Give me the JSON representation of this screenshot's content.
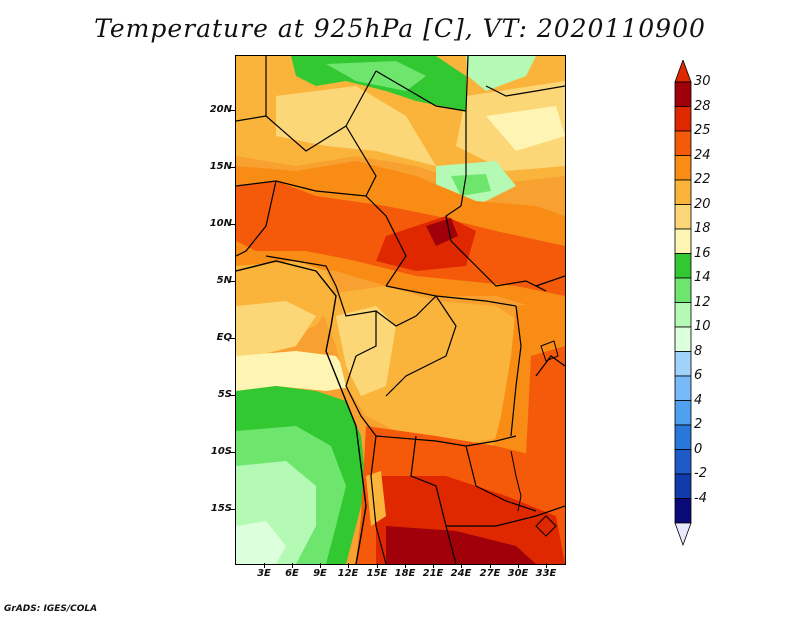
{
  "title": "Temperature at 925hPa [C], VT: 2020110900",
  "footer": "GrADS: IGES/COLA",
  "map": {
    "lat_labels": [
      "20N",
      "15N",
      "10N",
      "5N",
      "EQ",
      "5S",
      "10S",
      "15S"
    ],
    "lon_labels": [
      "3E",
      "6E",
      "9E",
      "12E",
      "15E",
      "18E",
      "21E",
      "24E",
      "27E",
      "30E",
      "33E"
    ]
  },
  "colorbar": {
    "levels": [
      {
        "label": "30",
        "color": "#a0000a"
      },
      {
        "label": "28",
        "color": "#e02800"
      },
      {
        "label": "25",
        "color": "#f55a0a"
      },
      {
        "label": "24",
        "color": "#f88c14"
      },
      {
        "label": "22",
        "color": "#fab43c"
      },
      {
        "label": "20",
        "color": "#fcd778"
      },
      {
        "label": "18",
        "color": "#fef5b4"
      },
      {
        "label": "16",
        "color": "#32c832"
      },
      {
        "label": "14",
        "color": "#6ee66e"
      },
      {
        "label": "12",
        "color": "#b4fab4"
      },
      {
        "label": "10",
        "color": "#dcffdc"
      },
      {
        "label": "8",
        "color": "#a0d2fa"
      },
      {
        "label": "6",
        "color": "#78b9fa"
      },
      {
        "label": "4",
        "color": "#50a0f0"
      },
      {
        "label": "2",
        "color": "#2878dc"
      },
      {
        "label": "0",
        "color": "#1e5ac8"
      },
      {
        "label": "-2",
        "color": "#0f3caa"
      },
      {
        "label": "-4",
        "color": "#0a0a78"
      }
    ],
    "top_color": "#e02800",
    "bottom_color": "#e8e8ff"
  }
}
